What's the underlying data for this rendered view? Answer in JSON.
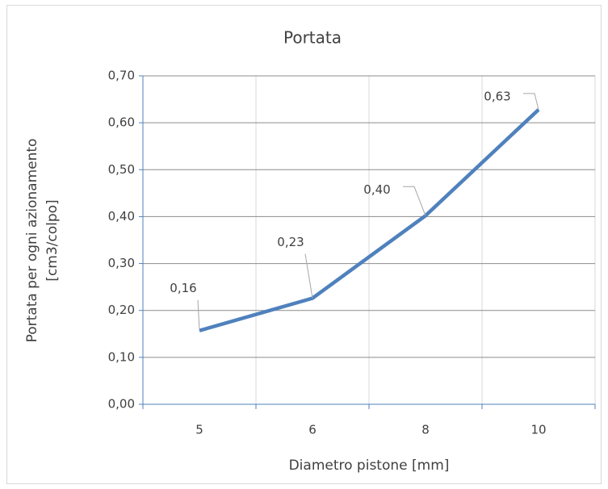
{
  "chart_data": {
    "type": "line",
    "title": "Portata",
    "x_label": "Diametro pistone [mm]",
    "y_label": [
      "Portata per ogni azionamento",
      "[cm3/colpo]"
    ],
    "categories": [
      "5",
      "6",
      "8",
      "10"
    ],
    "series": [
      {
        "name": "Portata",
        "color": "#4f81bd",
        "values": [
          0.157,
          0.226,
          0.402,
          0.628
        ],
        "value_labels": [
          "0,16",
          "0,23",
          "0,40",
          "0,63"
        ]
      }
    ],
    "ylim": [
      0,
      0.7
    ],
    "yticks": [
      {
        "value": 0,
        "label": "0,00"
      },
      {
        "value": 0.1,
        "label": "0,10"
      },
      {
        "value": 0.2,
        "label": "0,20"
      },
      {
        "value": 0.3,
        "label": "0,30"
      },
      {
        "value": 0.4,
        "label": "0,40"
      },
      {
        "value": 0.5,
        "label": "0,50"
      },
      {
        "value": 0.6,
        "label": "0,60"
      },
      {
        "value": 0.7,
        "label": "0,70"
      }
    ],
    "grid": true
  }
}
